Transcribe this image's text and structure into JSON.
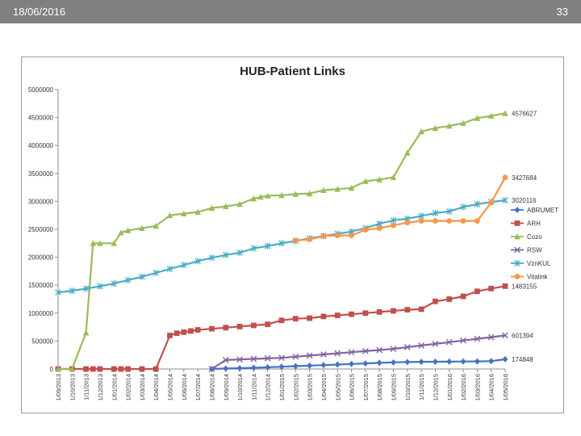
{
  "slide": {
    "date": "18/06/2016",
    "page_number": "33"
  },
  "chart_data": {
    "type": "line",
    "title": "HUB-Patient Links",
    "xlabel": "",
    "ylabel": "",
    "ylim": [
      0,
      5000000
    ],
    "yticks": [
      0,
      500000,
      1000000,
      1500000,
      2000000,
      2500000,
      3000000,
      3500000,
      4000000,
      4500000,
      5000000
    ],
    "ytick_labels": [
      "0",
      "500000",
      "1000000",
      "1500000",
      "2000000",
      "2500000",
      "3000000",
      "3500000",
      "4000000",
      "4500000",
      "5000000"
    ],
    "categories": [
      "1/09/2013",
      "1/10/2013",
      "1/11/2013",
      "1/12/2013",
      "1/01/2014",
      "1/02/2014",
      "1/03/2014",
      "1/04/2014",
      "1/05/2014",
      "1/06/2014",
      "1/07/2014",
      "1/08/2014",
      "1/09/2014",
      "1/10/2014",
      "1/11/2014",
      "1/12/2014",
      "1/01/2015",
      "1/02/2015",
      "1/03/2015",
      "1/04/2015",
      "1/05/2015",
      "1/06/2015",
      "1/07/2015",
      "1/08/2015",
      "1/09/2015",
      "1/10/2015",
      "1/11/2015",
      "1/12/2015",
      "1/01/2016",
      "1/02/2016",
      "1/03/2016",
      "1/04/2016",
      "1/05/2016"
    ],
    "x": [
      0,
      1,
      2,
      2.5,
      3,
      4,
      4.5,
      5,
      5.5,
      6,
      6.5,
      7,
      7.5,
      8,
      8.5,
      9,
      9.5,
      10,
      10.5,
      11,
      11.5,
      12,
      12.5,
      13,
      13.5,
      14,
      14.5,
      15,
      15.5,
      16,
      16.5,
      17,
      17.5,
      18,
      18.5,
      19,
      19.5,
      20,
      20.5,
      21,
      21.5,
      22,
      22.5,
      23,
      23.5,
      24,
      24.5,
      25,
      25.5,
      26,
      26.5,
      27,
      27.5,
      28,
      28.5,
      29,
      29.5,
      30,
      30.5,
      31,
      31.5,
      32
    ],
    "grid": false,
    "legend_position": "right",
    "series": [
      {
        "name": "ABRUMET",
        "color": "#4472c4",
        "marker": "diamond",
        "end_label": "174848",
        "points": [
          [
            11,
            0
          ],
          [
            12,
            8000
          ],
          [
            13,
            14000
          ],
          [
            14,
            22000
          ],
          [
            15,
            30000
          ],
          [
            16,
            40000
          ],
          [
            17,
            50000
          ],
          [
            18,
            60000
          ],
          [
            19,
            70000
          ],
          [
            20,
            80000
          ],
          [
            21,
            90000
          ],
          [
            22,
            100000
          ],
          [
            23,
            110000
          ],
          [
            24,
            118000
          ],
          [
            25,
            124000
          ],
          [
            26,
            128000
          ],
          [
            27,
            130000
          ],
          [
            28,
            132000
          ],
          [
            29,
            134000
          ],
          [
            30,
            136000
          ],
          [
            31,
            140000
          ],
          [
            32,
            174848
          ]
        ]
      },
      {
        "name": "ARH",
        "color": "#c0504d",
        "marker": "square",
        "end_label": "1483155",
        "points": [
          [
            0,
            0
          ],
          [
            1,
            0
          ],
          [
            2,
            0
          ],
          [
            2.5,
            0
          ],
          [
            3,
            0
          ],
          [
            4,
            0
          ],
          [
            4.5,
            0
          ],
          [
            5,
            0
          ],
          [
            6,
            0
          ],
          [
            7,
            0
          ],
          [
            8,
            600000
          ],
          [
            8.5,
            640000
          ],
          [
            9,
            660000
          ],
          [
            9.5,
            680000
          ],
          [
            10,
            700000
          ],
          [
            11,
            720000
          ],
          [
            12,
            740000
          ],
          [
            13,
            760000
          ],
          [
            14,
            780000
          ],
          [
            15,
            800000
          ],
          [
            16,
            870000
          ],
          [
            17,
            900000
          ],
          [
            18,
            910000
          ],
          [
            19,
            940000
          ],
          [
            20,
            960000
          ],
          [
            21,
            980000
          ],
          [
            22,
            1000000
          ],
          [
            23,
            1020000
          ],
          [
            24,
            1040000
          ],
          [
            25,
            1060000
          ],
          [
            26,
            1070000
          ],
          [
            27,
            1210000
          ],
          [
            28,
            1250000
          ],
          [
            29,
            1300000
          ],
          [
            30,
            1390000
          ],
          [
            31,
            1440000
          ],
          [
            32,
            1483155
          ]
        ]
      },
      {
        "name": "Cozo",
        "color": "#9bbb59",
        "marker": "triangle",
        "end_label": "4576627",
        "points": [
          [
            0,
            0
          ],
          [
            1,
            0
          ],
          [
            2,
            650000
          ],
          [
            2.5,
            2250000
          ],
          [
            3,
            2250000
          ],
          [
            4,
            2250000
          ],
          [
            4.5,
            2440000
          ],
          [
            5,
            2480000
          ],
          [
            6,
            2520000
          ],
          [
            7,
            2560000
          ],
          [
            8,
            2750000
          ],
          [
            9,
            2780000
          ],
          [
            10,
            2810000
          ],
          [
            11,
            2880000
          ],
          [
            12,
            2910000
          ],
          [
            13,
            2950000
          ],
          [
            14,
            3050000
          ],
          [
            14.5,
            3080000
          ],
          [
            15,
            3100000
          ],
          [
            16,
            3110000
          ],
          [
            17,
            3130000
          ],
          [
            18,
            3140000
          ],
          [
            19,
            3200000
          ],
          [
            20,
            3220000
          ],
          [
            21,
            3240000
          ],
          [
            22,
            3360000
          ],
          [
            23,
            3390000
          ],
          [
            24,
            3430000
          ],
          [
            25,
            3870000
          ],
          [
            26,
            4250000
          ],
          [
            27,
            4310000
          ],
          [
            28,
            4350000
          ],
          [
            29,
            4400000
          ],
          [
            30,
            4490000
          ],
          [
            31,
            4530000
          ],
          [
            32,
            4576627
          ]
        ]
      },
      {
        "name": "RSW",
        "color": "#8064a2",
        "marker": "x",
        "end_label": "601394",
        "points": [
          [
            11,
            0
          ],
          [
            12,
            160000
          ],
          [
            13,
            170000
          ],
          [
            14,
            180000
          ],
          [
            15,
            190000
          ],
          [
            16,
            200000
          ],
          [
            17,
            220000
          ],
          [
            18,
            240000
          ],
          [
            19,
            260000
          ],
          [
            20,
            280000
          ],
          [
            21,
            300000
          ],
          [
            22,
            320000
          ],
          [
            23,
            340000
          ],
          [
            24,
            360000
          ],
          [
            25,
            390000
          ],
          [
            26,
            420000
          ],
          [
            27,
            450000
          ],
          [
            28,
            480000
          ],
          [
            29,
            510000
          ],
          [
            30,
            540000
          ],
          [
            31,
            570000
          ],
          [
            32,
            601394
          ]
        ]
      },
      {
        "name": "VznKUL",
        "color": "#4bacc6",
        "marker": "star",
        "end_label": "3020116",
        "points": [
          [
            0,
            1370000
          ],
          [
            1,
            1400000
          ],
          [
            2,
            1440000
          ],
          [
            3,
            1480000
          ],
          [
            4,
            1530000
          ],
          [
            5,
            1590000
          ],
          [
            6,
            1650000
          ],
          [
            7,
            1720000
          ],
          [
            8,
            1790000
          ],
          [
            9,
            1860000
          ],
          [
            10,
            1930000
          ],
          [
            11,
            1990000
          ],
          [
            12,
            2040000
          ],
          [
            13,
            2080000
          ],
          [
            14,
            2160000
          ],
          [
            15,
            2200000
          ],
          [
            16,
            2250000
          ],
          [
            17,
            2290000
          ],
          [
            18,
            2340000
          ],
          [
            19,
            2380000
          ],
          [
            20,
            2420000
          ],
          [
            21,
            2460000
          ],
          [
            22,
            2520000
          ],
          [
            23,
            2600000
          ],
          [
            24,
            2660000
          ],
          [
            25,
            2690000
          ],
          [
            26,
            2740000
          ],
          [
            27,
            2790000
          ],
          [
            28,
            2820000
          ],
          [
            29,
            2900000
          ],
          [
            30,
            2950000
          ],
          [
            31,
            2990000
          ],
          [
            32,
            3020116
          ]
        ]
      },
      {
        "name": "Vitalink",
        "color": "#f79646",
        "marker": "circle",
        "end_label": "3427684",
        "points": [
          [
            17,
            2300000
          ],
          [
            18,
            2320000
          ],
          [
            19,
            2380000
          ],
          [
            20,
            2390000
          ],
          [
            21,
            2390000
          ],
          [
            22,
            2490000
          ],
          [
            23,
            2520000
          ],
          [
            24,
            2570000
          ],
          [
            25,
            2620000
          ],
          [
            26,
            2650000
          ],
          [
            27,
            2650000
          ],
          [
            28,
            2650000
          ],
          [
            29,
            2650000
          ],
          [
            30,
            2650000
          ],
          [
            31,
            2980000
          ],
          [
            32,
            3427684
          ]
        ]
      }
    ]
  }
}
